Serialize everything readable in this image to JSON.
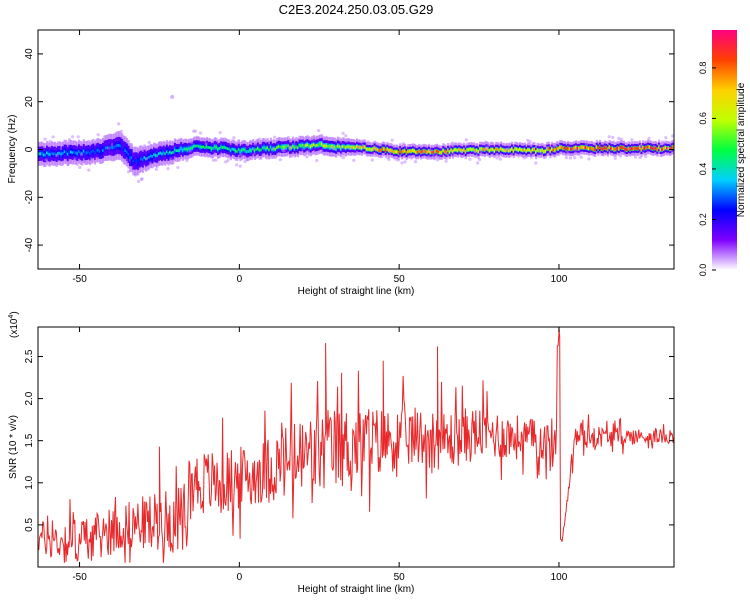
{
  "title": "C2E3.2024.250.03.05.G29",
  "colors": {
    "snr_line": "#e8282a",
    "axis": "#000000",
    "band": "#2b2bff"
  },
  "chart_data": [
    {
      "type": "heatmap",
      "xlabel": "Height of straight line (km)",
      "ylabel": "Frequency (Hz)",
      "xlim": [
        -63,
        136
      ],
      "ylim": [
        -50,
        50
      ],
      "x_ticks": [
        -50,
        0,
        50,
        100
      ],
      "y_ticks": [
        -40,
        -20,
        0,
        20,
        40
      ],
      "colorbar": {
        "label": "Normalized spectral amplitude",
        "range": [
          0,
          0.95
        ],
        "ticks": [
          0.0,
          0.2,
          0.4,
          0.6,
          0.8
        ],
        "tick_labels": [
          "0.0",
          "0.2",
          "0.4",
          "0.6",
          "0.8"
        ],
        "colormap": [
          "#ffffff",
          "#7f00ff",
          "#0000ff",
          "#00d0ff",
          "#00ff40",
          "#c0ff00",
          "#ffd000",
          "#ff4000",
          "#ff0080"
        ]
      },
      "ridge": {
        "x": [
          -63,
          -55,
          -45,
          -38,
          -33,
          -28,
          -22,
          -15,
          -5,
          0,
          10,
          20,
          25,
          30,
          40,
          50,
          60,
          70,
          80,
          90,
          95,
          100,
          110,
          120,
          130,
          136
        ],
        "freq": [
          -2,
          -1.5,
          -1,
          2,
          -5,
          -3,
          -1,
          1,
          0.5,
          -0.5,
          0.5,
          1.5,
          2,
          1,
          0.5,
          -1,
          -1,
          -0.5,
          0,
          -0.5,
          -0.5,
          0.5,
          0.5,
          0.5,
          0.5,
          0.5
        ],
        "amplitude": [
          0.35,
          0.35,
          0.3,
          0.3,
          0.3,
          0.35,
          0.4,
          0.45,
          0.45,
          0.45,
          0.5,
          0.55,
          0.6,
          0.6,
          0.75,
          0.8,
          0.8,
          0.7,
          0.7,
          0.7,
          0.7,
          0.85,
          0.85,
          0.9,
          0.85,
          0.85
        ],
        "width_hz": [
          5,
          5,
          5,
          6,
          6,
          5,
          5,
          4,
          4,
          4,
          4,
          4,
          4,
          4,
          3,
          3,
          3,
          3,
          3,
          3,
          3,
          3,
          3,
          3,
          3,
          3
        ]
      }
    },
    {
      "type": "line",
      "xlabel": "Height of straight line (km)",
      "ylabel": "SNR (10 * v/v)",
      "y_multiplier": "(x10",
      "y_multiplier_exp": "4",
      "y_multiplier_close": ")",
      "xlim": [
        -63,
        136
      ],
      "ylim": [
        0,
        2.85
      ],
      "x_ticks": [
        -50,
        0,
        50,
        100
      ],
      "y_ticks": [
        0.5,
        1.0,
        1.5,
        2.0,
        2.5
      ],
      "y_tick_labels": [
        "0.5",
        "1.0",
        "1.5",
        "2.0",
        "2.5"
      ],
      "trend": {
        "x": [
          -63,
          -55,
          -45,
          -35,
          -25,
          -18,
          -15,
          -5,
          5,
          15,
          25,
          35,
          45,
          55,
          65,
          75,
          85,
          95,
          99,
          100,
          101,
          105,
          115,
          125,
          136
        ],
        "snr": [
          0.35,
          0.3,
          0.35,
          0.5,
          0.55,
          0.55,
          1.0,
          1.0,
          1.1,
          1.25,
          1.35,
          1.45,
          1.5,
          1.55,
          1.5,
          1.6,
          1.55,
          1.5,
          1.4,
          2.8,
          0.3,
          1.55,
          1.55,
          1.55,
          1.55
        ],
        "spread": [
          0.25,
          0.35,
          0.35,
          0.35,
          0.45,
          0.5,
          0.5,
          0.5,
          0.45,
          0.6,
          0.65,
          0.6,
          0.5,
          0.45,
          0.45,
          0.4,
          0.35,
          0.3,
          0.5,
          0.0,
          0.0,
          0.2,
          0.15,
          0.12,
          0.1
        ]
      },
      "peaks": [
        {
          "x": -25,
          "snr": 1.43
        },
        {
          "x": 27,
          "snr": 2.66
        },
        {
          "x": 45,
          "snr": 2.45
        },
        {
          "x": 62,
          "snr": 2.62
        },
        {
          "x": 100,
          "snr": 2.85
        },
        {
          "x": 100.5,
          "snr": 0.33
        }
      ]
    }
  ]
}
